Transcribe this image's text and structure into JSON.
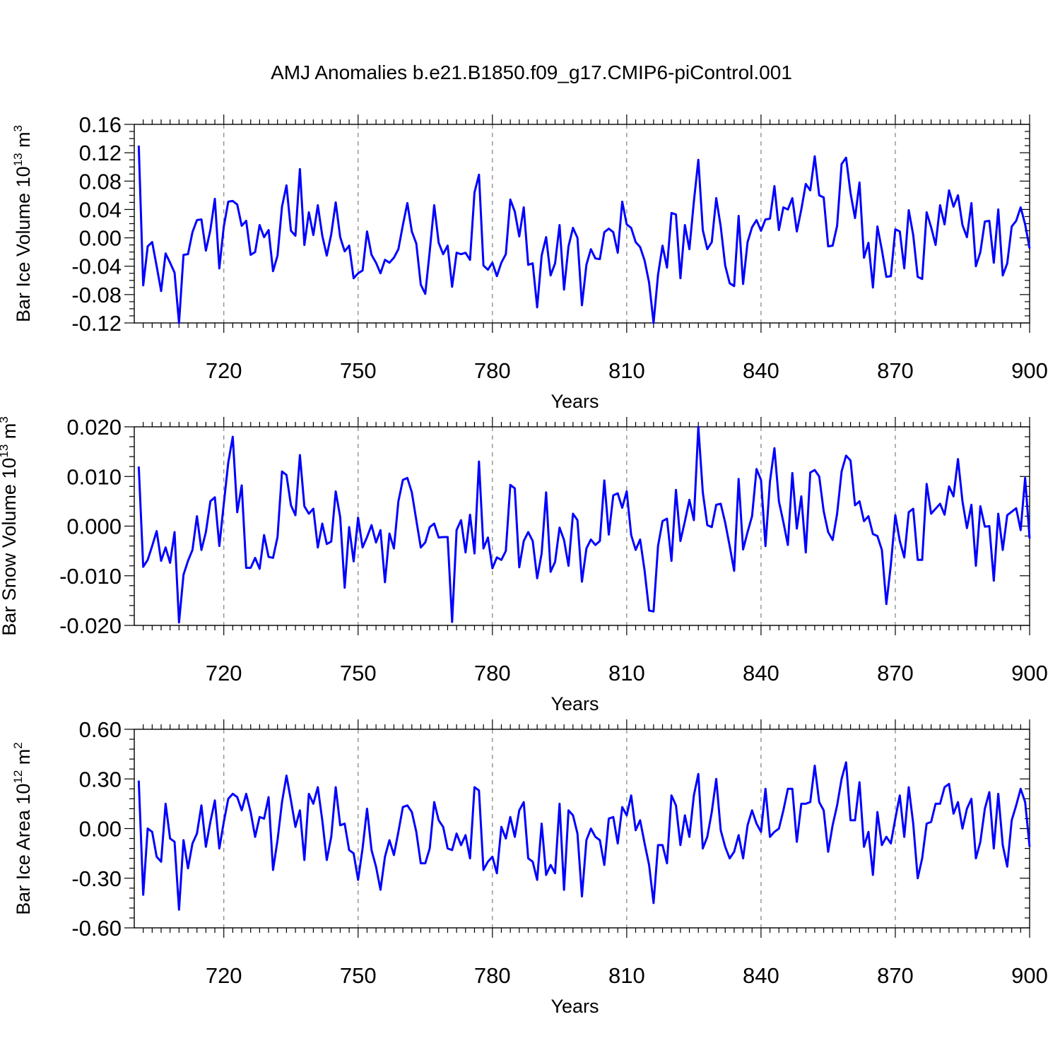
{
  "figure": {
    "title": "AMJ Anomalies b.e21.B1850.f09_g17.CMIP6-piControl.001"
  },
  "chart_data": [
    {
      "type": "line",
      "ylabel_main": "Bar Ice Volume 10",
      "ylabel_exp": "13",
      "ylabel_unit": " m",
      "ylabel_unit_exp": "3",
      "xlabel": "Years",
      "xlim": [
        700,
        900
      ],
      "xticks": [
        720,
        750,
        780,
        810,
        840,
        870,
        900
      ],
      "ylim": [
        -0.12,
        0.16
      ],
      "yticks": [
        "0.16",
        "0.12",
        "0.08",
        "0.04",
        "0.00",
        "-0.04",
        "-0.08",
        "-0.12"
      ],
      "ytick_values": [
        0.16,
        0.12,
        0.08,
        0.04,
        0.0,
        -0.04,
        -0.08,
        -0.12
      ],
      "ystep_minor": 0.01,
      "color": "#0000ff",
      "x_start": 701,
      "values": [
        0.13,
        -0.067,
        -0.012,
        -0.006,
        -0.04,
        -0.075,
        -0.022,
        -0.035,
        -0.049,
        -0.12,
        -0.024,
        -0.023,
        0.008,
        0.025,
        0.026,
        -0.018,
        0.011,
        0.055,
        -0.043,
        0.016,
        0.051,
        0.052,
        0.047,
        0.017,
        0.024,
        -0.024,
        -0.02,
        0.018,
        0.001,
        0.011,
        -0.047,
        -0.025,
        0.044,
        0.074,
        0.01,
        0.003,
        0.097,
        -0.01,
        0.036,
        0.004,
        0.046,
        0.003,
        -0.025,
        0.005,
        0.05,
        0.001,
        -0.019,
        -0.011,
        -0.057,
        -0.05,
        -0.046,
        0.009,
        -0.024,
        -0.035,
        -0.05,
        -0.031,
        -0.035,
        -0.028,
        -0.016,
        0.018,
        0.049,
        0.009,
        -0.008,
        -0.066,
        -0.079,
        -0.019,
        0.046,
        -0.007,
        -0.023,
        -0.011,
        -0.069,
        -0.021,
        -0.023,
        -0.021,
        -0.031,
        0.064,
        0.089,
        -0.039,
        -0.045,
        -0.035,
        -0.054,
        -0.035,
        -0.023,
        0.054,
        0.037,
        0.002,
        0.043,
        -0.038,
        -0.036,
        -0.098,
        -0.025,
        0.001,
        -0.053,
        -0.036,
        0.018,
        -0.073,
        -0.012,
        0.014,
        0.0,
        -0.095,
        -0.038,
        -0.016,
        -0.029,
        -0.03,
        0.008,
        0.013,
        0.008,
        -0.021,
        0.051,
        0.019,
        0.014,
        -0.006,
        -0.013,
        -0.032,
        -0.063,
        -0.12,
        -0.052,
        -0.011,
        -0.042,
        0.035,
        0.033,
        -0.057,
        0.018,
        -0.016,
        0.051,
        0.11,
        0.011,
        -0.016,
        -0.006,
        0.056,
        0.016,
        -0.039,
        -0.064,
        -0.068,
        0.031,
        -0.065,
        -0.006,
        0.015,
        0.025,
        0.01,
        0.026,
        0.027,
        0.073,
        0.011,
        0.043,
        0.04,
        0.056,
        0.009,
        0.04,
        0.076,
        0.067,
        0.115,
        0.06,
        0.057,
        -0.012,
        -0.011,
        0.017,
        0.104,
        0.113,
        0.063,
        0.028,
        0.078,
        -0.028,
        -0.007,
        -0.07,
        0.016,
        -0.017,
        -0.055,
        -0.054,
        0.012,
        0.009,
        -0.043,
        0.039,
        0.004,
        -0.055,
        -0.058,
        0.036,
        0.015,
        -0.01,
        0.046,
        0.019,
        0.067,
        0.044,
        0.06,
        0.018,
        0.001,
        0.049,
        -0.04,
        -0.02,
        0.023,
        0.024,
        -0.035,
        0.04,
        -0.053,
        -0.036,
        0.016,
        0.024,
        0.043,
        0.019,
        -0.015
      ]
    },
    {
      "type": "line",
      "ylabel_main": "Bar Snow Volume 10",
      "ylabel_exp": "13",
      "ylabel_unit": " m",
      "ylabel_unit_exp": "3",
      "xlabel": "Years",
      "xlim": [
        700,
        900
      ],
      "xticks": [
        720,
        750,
        780,
        810,
        840,
        870,
        900
      ],
      "ylim": [
        -0.02,
        0.02
      ],
      "yticks": [
        "0.020",
        "0.010",
        "0.000",
        "-0.010",
        "-0.020"
      ],
      "ytick_values": [
        0.02,
        0.01,
        0.0,
        -0.01,
        -0.02
      ],
      "ystep_minor": 0.002,
      "color": "#0000ff",
      "x_start": 701,
      "values": [
        0.012,
        -0.0082,
        -0.0068,
        -0.004,
        -0.001,
        -0.007,
        -0.0043,
        -0.0074,
        -0.0012,
        -0.0194,
        -0.0098,
        -0.007,
        -0.0048,
        0.002,
        -0.0048,
        -0.0012,
        0.005,
        0.0058,
        -0.004,
        0.0045,
        0.0128,
        0.018,
        0.0028,
        0.0082,
        -0.0084,
        -0.0084,
        -0.0064,
        -0.0086,
        -0.0018,
        -0.0062,
        -0.0064,
        -0.0022,
        0.011,
        0.0103,
        0.0042,
        0.0022,
        0.0143,
        0.004,
        0.0025,
        0.0035,
        -0.0043,
        0.0005,
        -0.0036,
        -0.0031,
        0.007,
        0.0018,
        -0.0124,
        -0.0002,
        -0.0071,
        0.0017,
        -0.0043,
        -0.0022,
        0.0002,
        -0.0033,
        -0.0008,
        -0.0113,
        -0.0015,
        -0.0045,
        0.005,
        0.0093,
        0.0097,
        0.0068,
        0.0012,
        -0.0043,
        -0.0033,
        -0.0002,
        0.0005,
        -0.0023,
        -0.0022,
        -0.0022,
        -0.0193,
        -0.0008,
        0.0012,
        -0.0053,
        0.0023,
        -0.0055,
        0.013,
        -0.0045,
        -0.0023,
        -0.0085,
        -0.0063,
        -0.0068,
        -0.005,
        0.0083,
        0.0076,
        -0.0083,
        -0.003,
        -0.0012,
        -0.003,
        -0.0105,
        -0.0055,
        0.0068,
        -0.0092,
        -0.0072,
        -0.0003,
        -0.0028,
        -0.008,
        0.0025,
        0.0012,
        -0.0112,
        -0.0045,
        -0.0027,
        -0.0038,
        -0.003,
        0.0092,
        -0.0017,
        0.0062,
        0.0066,
        0.0037,
        0.007,
        -0.0018,
        -0.0048,
        -0.0027,
        -0.009,
        -0.017,
        -0.0172,
        -0.004,
        0.001,
        0.0015,
        -0.007,
        0.0073,
        -0.003,
        0.001,
        0.0053,
        0.0012,
        0.02,
        0.0068,
        0.0002,
        -0.0002,
        0.0043,
        0.0045,
        0.0007,
        -0.004,
        -0.009,
        0.0095,
        -0.0047,
        -0.0012,
        0.002,
        0.0115,
        0.0093,
        -0.004,
        0.009,
        0.0157,
        0.005,
        0.0008,
        -0.0038,
        0.0107,
        -0.0005,
        0.006,
        -0.0053,
        0.0108,
        0.0113,
        0.01,
        0.003,
        -0.0012,
        -0.0028,
        0.0025,
        0.011,
        0.0142,
        0.0132,
        0.0042,
        0.005,
        0.001,
        0.002,
        -0.0016,
        -0.002,
        -0.0048,
        -0.0157,
        -0.0078,
        0.0022,
        -0.003,
        -0.0063,
        0.0028,
        0.0035,
        -0.0068,
        -0.0068,
        0.0085,
        0.0025,
        0.0035,
        0.0045,
        0.0023,
        0.008,
        0.006,
        0.0135,
        0.005,
        -0.0004,
        0.0043,
        -0.008,
        0.004,
        -0.0001,
        0.0,
        -0.011,
        0.0025,
        -0.0048,
        0.0022,
        0.0029,
        0.0036,
        -0.0008,
        0.0097,
        -0.0025
      ]
    },
    {
      "type": "line",
      "ylabel_main": "Bar Ice Area 10",
      "ylabel_exp": "12",
      "ylabel_unit": " m",
      "ylabel_unit_exp": "2",
      "xlabel": "Years",
      "xlim": [
        700,
        900
      ],
      "xticks": [
        720,
        750,
        780,
        810,
        840,
        870,
        900
      ],
      "ylim": [
        -0.6,
        0.6
      ],
      "yticks": [
        "0.60",
        "0.30",
        "0.00",
        "-0.30",
        "-0.60"
      ],
      "ytick_values": [
        0.6,
        0.3,
        0.0,
        -0.3,
        -0.6
      ],
      "ystep_minor": 0.06,
      "color": "#0000ff",
      "x_start": 701,
      "values": [
        0.29,
        -0.4,
        0.0,
        -0.02,
        -0.17,
        -0.2,
        0.15,
        -0.06,
        -0.08,
        -0.49,
        -0.07,
        -0.24,
        -0.09,
        -0.03,
        0.14,
        -0.11,
        0.04,
        0.17,
        -0.12,
        0.04,
        0.18,
        0.21,
        0.19,
        0.11,
        0.21,
        0.1,
        -0.05,
        0.07,
        0.06,
        0.19,
        -0.25,
        -0.07,
        0.16,
        0.32,
        0.17,
        0.01,
        0.11,
        -0.19,
        0.21,
        0.15,
        0.25,
        0.05,
        -0.19,
        -0.05,
        0.25,
        0.02,
        0.03,
        -0.13,
        -0.15,
        -0.31,
        -0.12,
        0.12,
        -0.13,
        -0.23,
        -0.37,
        -0.17,
        -0.07,
        -0.16,
        -0.02,
        0.13,
        0.14,
        0.1,
        -0.02,
        -0.21,
        -0.21,
        -0.12,
        0.16,
        0.05,
        0.01,
        -0.12,
        -0.13,
        -0.03,
        -0.1,
        -0.04,
        -0.18,
        0.25,
        0.23,
        -0.25,
        -0.2,
        -0.17,
        -0.27,
        0.01,
        -0.06,
        0.07,
        -0.05,
        0.11,
        0.16,
        -0.18,
        -0.2,
        -0.31,
        0.03,
        -0.28,
        -0.22,
        -0.27,
        0.15,
        -0.37,
        0.11,
        0.08,
        -0.03,
        -0.41,
        -0.07,
        0.0,
        -0.05,
        -0.07,
        -0.22,
        0.06,
        0.07,
        -0.09,
        0.13,
        0.08,
        0.2,
        -0.01,
        0.05,
        -0.09,
        -0.22,
        -0.45,
        -0.1,
        -0.1,
        -0.21,
        0.2,
        0.14,
        -0.1,
        0.08,
        -0.05,
        0.2,
        0.33,
        -0.12,
        -0.05,
        0.1,
        0.3,
        -0.01,
        -0.11,
        -0.18,
        -0.14,
        -0.04,
        -0.18,
        0.02,
        0.11,
        0.03,
        -0.02,
        0.24,
        -0.05,
        -0.02,
        0.0,
        0.11,
        0.24,
        0.24,
        -0.08,
        0.15,
        0.15,
        0.16,
        0.38,
        0.16,
        0.11,
        -0.14,
        0.02,
        0.14,
        0.3,
        0.4,
        0.05,
        0.05,
        0.28,
        -0.11,
        -0.02,
        -0.28,
        0.1,
        -0.1,
        -0.05,
        -0.09,
        0.06,
        0.2,
        -0.05,
        0.25,
        0.03,
        -0.3,
        -0.18,
        0.03,
        0.04,
        0.15,
        0.15,
        0.25,
        0.27,
        0.09,
        0.16,
        0.0,
        0.12,
        0.18,
        -0.18,
        -0.08,
        0.12,
        0.22,
        -0.12,
        0.21,
        -0.1,
        -0.23,
        0.05,
        0.14,
        0.24,
        0.16,
        -0.11
      ]
    }
  ]
}
